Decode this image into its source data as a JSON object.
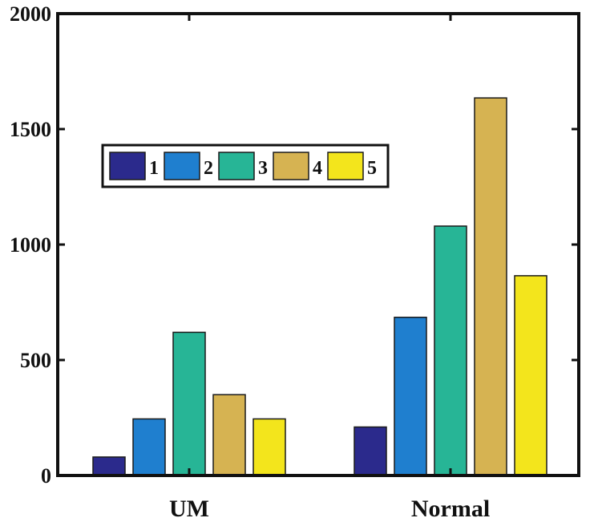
{
  "chart_data": {
    "type": "bar",
    "categories": [
      "UM",
      "Normal"
    ],
    "series": [
      {
        "name": "1",
        "color": "#2b2a8c",
        "values": [
          80,
          210
        ]
      },
      {
        "name": "2",
        "color": "#1f7fcf",
        "values": [
          245,
          685
        ]
      },
      {
        "name": "3",
        "color": "#27b596",
        "values": [
          620,
          1080
        ]
      },
      {
        "name": "4",
        "color": "#d6b352",
        "values": [
          350,
          1635
        ]
      },
      {
        "name": "5",
        "color": "#f3e51c",
        "values": [
          245,
          865
        ]
      }
    ],
    "title": "",
    "xlabel": "",
    "ylabel": "",
    "ylim": [
      0,
      2000
    ],
    "yticks": [
      "0",
      "500",
      "1000",
      "1500",
      "2000"
    ],
    "grid": false,
    "legend_position": "top-left",
    "legend_orientation": "horizontal"
  }
}
